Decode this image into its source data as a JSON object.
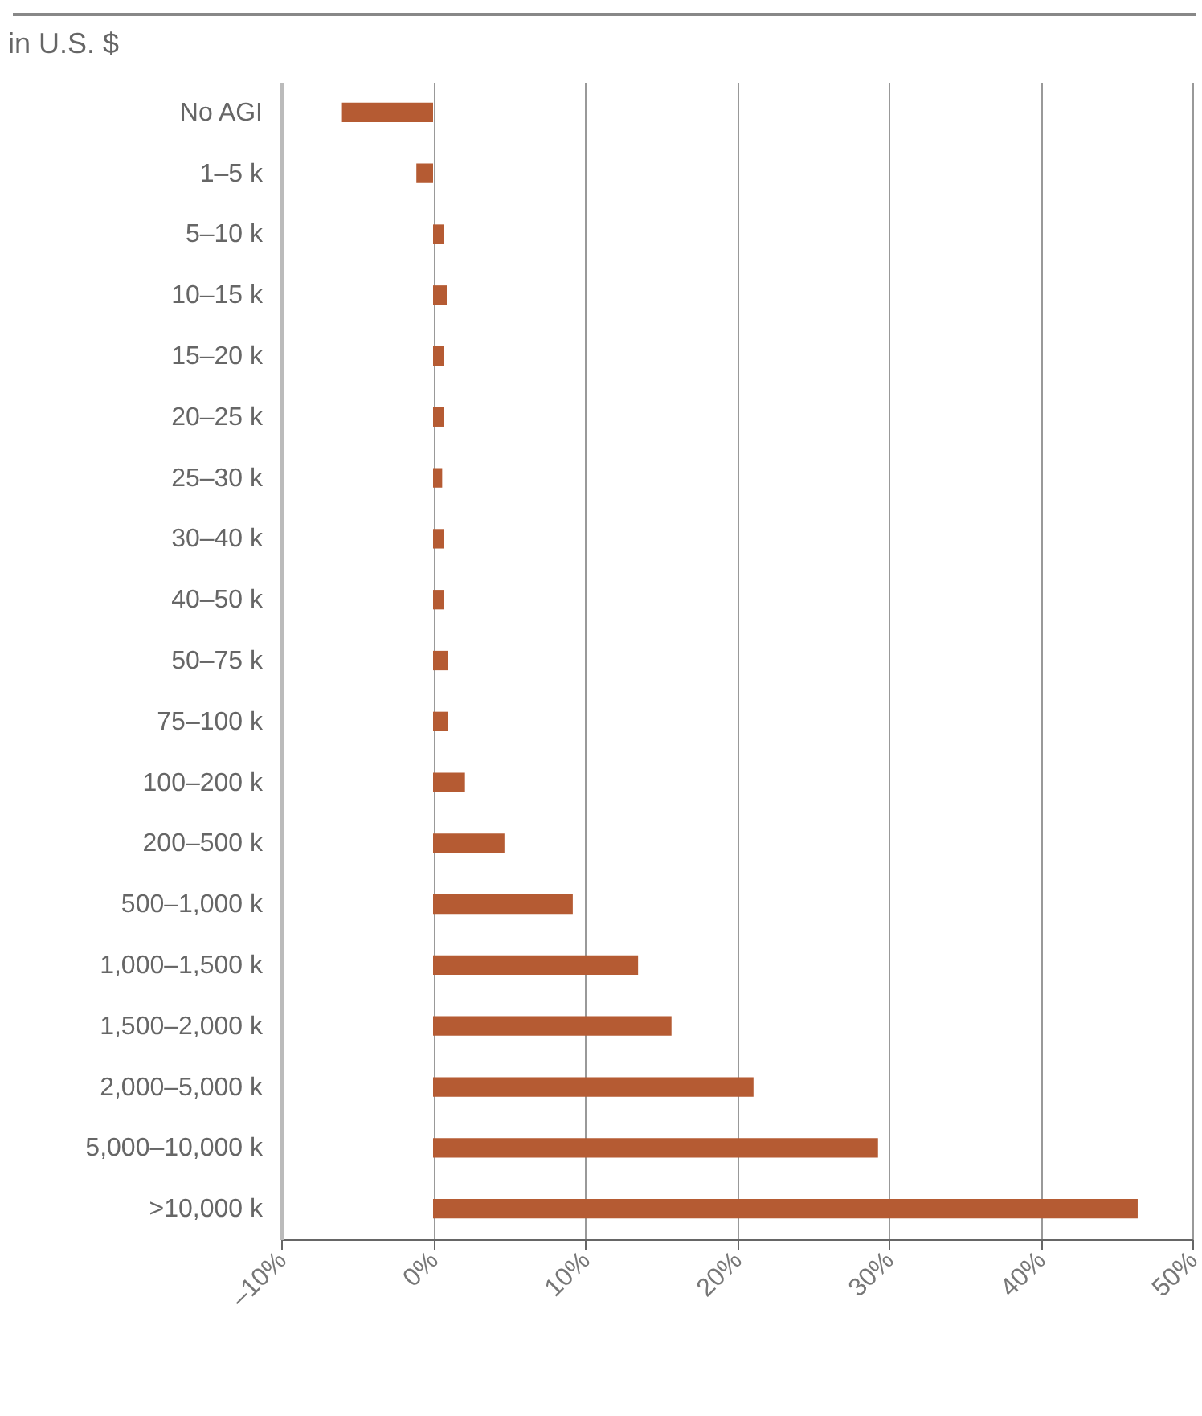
{
  "chart_data": {
    "type": "bar",
    "orientation": "horizontal",
    "title": "in U.S. $",
    "categories": [
      "No AGI",
      "1–5 k",
      "5–10 k",
      "10–15 k",
      "15–20 k",
      "20–25 k",
      "25–30 k",
      "30–40 k",
      "40–50 k",
      "50–75 k",
      "75–100 k",
      "100–200 k",
      "200–500 k",
      "500–1,000 k",
      "1,000–1,500 k",
      "1,500–2,000 k",
      "2,000–5,000 k",
      "5,000–10,000 k",
      ">10,000 k"
    ],
    "values": [
      -6.0,
      -1.1,
      0.7,
      0.9,
      0.7,
      0.7,
      0.6,
      0.7,
      0.7,
      1.0,
      1.0,
      2.1,
      4.7,
      9.2,
      13.5,
      15.7,
      21.1,
      29.3,
      46.4
    ],
    "color": "#b55b33",
    "xlim": [
      -10,
      50
    ],
    "xticks": [
      {
        "value": -10,
        "label": "–10%"
      },
      {
        "value": 0,
        "label": "0%"
      },
      {
        "value": 10,
        "label": "10%"
      },
      {
        "value": 20,
        "label": "20%"
      },
      {
        "value": 30,
        "label": "30%"
      },
      {
        "value": 40,
        "label": "40%"
      },
      {
        "value": 50,
        "label": "50%"
      }
    ],
    "grid": "x"
  }
}
